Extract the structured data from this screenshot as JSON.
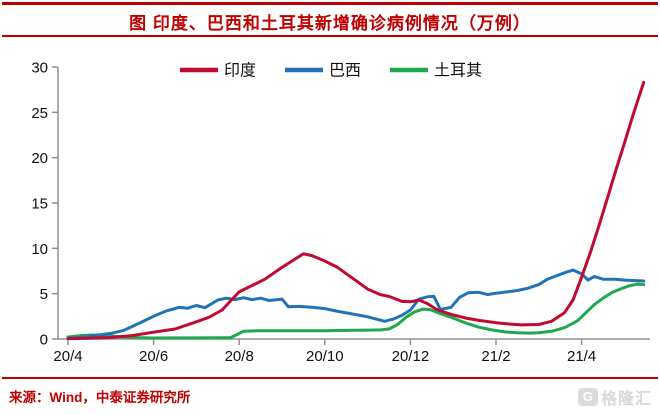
{
  "page": {
    "title": "图 印度、巴西和土耳其新增确诊病例情况（万例）",
    "source_note": "来源：Wind，中泰证券研究所",
    "watermark": {
      "icon": "gelonghui-logo-icon",
      "logo_text": "格隆汇"
    },
    "colors": {
      "accent_red": "#C00000",
      "india_red": "#C00A30",
      "brazil_blue": "#2273B6",
      "turkey_green": "#1FA84D",
      "axis_gray": "#909090",
      "tick_text": "#111111",
      "watermark_gray": "#CBCBCB"
    }
  },
  "chart_data": {
    "type": "line",
    "title": "图 印度、巴西和土耳其新增确诊病例情况（万例）",
    "unit": "万例",
    "grid": false,
    "legend_position": "top-center",
    "x_unit": "months since 2020-04",
    "x_axis": {
      "range_months": [
        0,
        13.45
      ],
      "ticks": [
        {
          "t": 0,
          "label": "20/4"
        },
        {
          "t": 2,
          "label": "20/6"
        },
        {
          "t": 4,
          "label": "20/8"
        },
        {
          "t": 6,
          "label": "20/10"
        },
        {
          "t": 8,
          "label": "20/12"
        },
        {
          "t": 10,
          "label": "21/2"
        },
        {
          "t": 12,
          "label": "21/4"
        }
      ]
    },
    "y_axis": {
      "min": 0,
      "max": 30,
      "tick_step": 5,
      "ticks": [
        0,
        5,
        10,
        15,
        20,
        25,
        30
      ]
    },
    "series": [
      {
        "id": "turkey",
        "name": "土耳其",
        "color": "#1FA84D",
        "points": [
          [
            0,
            0.22
          ],
          [
            0.3,
            0.38
          ],
          [
            0.55,
            0.44
          ],
          [
            0.8,
            0.4
          ],
          [
            1,
            0.32
          ],
          [
            1.3,
            0.22
          ],
          [
            1.6,
            0.15
          ],
          [
            2,
            0.11
          ],
          [
            2.5,
            0.12
          ],
          [
            3,
            0.12
          ],
          [
            3.5,
            0.13
          ],
          [
            3.8,
            0.15
          ],
          [
            3.95,
            0.5
          ],
          [
            4.1,
            0.85
          ],
          [
            4.4,
            0.9
          ],
          [
            5,
            0.92
          ],
          [
            5.5,
            0.9
          ],
          [
            6,
            0.92
          ],
          [
            6.5,
            0.95
          ],
          [
            7,
            0.98
          ],
          [
            7.3,
            1.0
          ],
          [
            7.5,
            1.1
          ],
          [
            7.7,
            1.6
          ],
          [
            7.9,
            2.4
          ],
          [
            8.1,
            3.0
          ],
          [
            8.3,
            3.3
          ],
          [
            8.45,
            3.25
          ],
          [
            8.7,
            2.8
          ],
          [
            9,
            2.3
          ],
          [
            9.3,
            1.75
          ],
          [
            9.6,
            1.3
          ],
          [
            9.9,
            1.0
          ],
          [
            10.2,
            0.78
          ],
          [
            10.5,
            0.68
          ],
          [
            10.8,
            0.65
          ],
          [
            11,
            0.7
          ],
          [
            11.3,
            0.85
          ],
          [
            11.6,
            1.25
          ],
          [
            11.9,
            2.0
          ],
          [
            12.1,
            2.9
          ],
          [
            12.3,
            3.8
          ],
          [
            12.5,
            4.5
          ],
          [
            12.7,
            5.1
          ],
          [
            12.9,
            5.5
          ],
          [
            13.1,
            5.85
          ],
          [
            13.3,
            6.05
          ],
          [
            13.45,
            6.0
          ]
        ]
      },
      {
        "id": "brazil",
        "name": "巴西",
        "color": "#2273B6",
        "points": [
          [
            0,
            0.07
          ],
          [
            0.3,
            0.2
          ],
          [
            0.6,
            0.38
          ],
          [
            1,
            0.62
          ],
          [
            1.3,
            0.95
          ],
          [
            1.6,
            1.6
          ],
          [
            2,
            2.5
          ],
          [
            2.3,
            3.1
          ],
          [
            2.6,
            3.5
          ],
          [
            2.8,
            3.4
          ],
          [
            3,
            3.7
          ],
          [
            3.2,
            3.45
          ],
          [
            3.5,
            4.3
          ],
          [
            3.7,
            4.5
          ],
          [
            3.9,
            4.35
          ],
          [
            4.1,
            4.55
          ],
          [
            4.3,
            4.35
          ],
          [
            4.5,
            4.5
          ],
          [
            4.7,
            4.25
          ],
          [
            5,
            4.4
          ],
          [
            5.15,
            3.55
          ],
          [
            5.4,
            3.6
          ],
          [
            5.7,
            3.5
          ],
          [
            6,
            3.35
          ],
          [
            6.3,
            3.05
          ],
          [
            6.6,
            2.8
          ],
          [
            7,
            2.45
          ],
          [
            7.2,
            2.2
          ],
          [
            7.4,
            1.95
          ],
          [
            7.6,
            2.2
          ],
          [
            7.8,
            2.6
          ],
          [
            8,
            3.2
          ],
          [
            8.2,
            4.4
          ],
          [
            8.4,
            4.65
          ],
          [
            8.55,
            4.7
          ],
          [
            8.7,
            3.25
          ],
          [
            8.95,
            3.5
          ],
          [
            9.15,
            4.6
          ],
          [
            9.35,
            5.1
          ],
          [
            9.6,
            5.15
          ],
          [
            9.8,
            4.9
          ],
          [
            10,
            5.05
          ],
          [
            10.25,
            5.2
          ],
          [
            10.5,
            5.35
          ],
          [
            10.75,
            5.6
          ],
          [
            11,
            6.0
          ],
          [
            11.2,
            6.6
          ],
          [
            11.4,
            6.95
          ],
          [
            11.6,
            7.3
          ],
          [
            11.8,
            7.6
          ],
          [
            12,
            7.2
          ],
          [
            12.15,
            6.5
          ],
          [
            12.3,
            6.9
          ],
          [
            12.5,
            6.6
          ],
          [
            12.8,
            6.6
          ],
          [
            13,
            6.5
          ],
          [
            13.45,
            6.4
          ]
        ]
      },
      {
        "id": "india",
        "name": "印度",
        "color": "#C00A30",
        "points": [
          [
            0,
            0.04
          ],
          [
            0.5,
            0.09
          ],
          [
            1,
            0.17
          ],
          [
            1.5,
            0.38
          ],
          [
            2,
            0.75
          ],
          [
            2.5,
            1.1
          ],
          [
            3,
            1.9
          ],
          [
            3.3,
            2.4
          ],
          [
            3.6,
            3.2
          ],
          [
            3.8,
            4.2
          ],
          [
            4,
            5.2
          ],
          [
            4.3,
            5.9
          ],
          [
            4.6,
            6.6
          ],
          [
            5,
            7.9
          ],
          [
            5.2,
            8.5
          ],
          [
            5.5,
            9.4
          ],
          [
            5.7,
            9.2
          ],
          [
            6,
            8.6
          ],
          [
            6.3,
            7.9
          ],
          [
            6.5,
            7.2
          ],
          [
            6.8,
            6.2
          ],
          [
            7,
            5.5
          ],
          [
            7.3,
            4.9
          ],
          [
            7.5,
            4.7
          ],
          [
            7.8,
            4.15
          ],
          [
            8,
            4.1
          ],
          [
            8.2,
            4.3
          ],
          [
            8.4,
            3.9
          ],
          [
            8.6,
            3.3
          ],
          [
            8.8,
            2.95
          ],
          [
            9,
            2.65
          ],
          [
            9.3,
            2.3
          ],
          [
            9.6,
            2.05
          ],
          [
            10,
            1.8
          ],
          [
            10.3,
            1.65
          ],
          [
            10.6,
            1.55
          ],
          [
            11,
            1.6
          ],
          [
            11.3,
            1.95
          ],
          [
            11.6,
            2.9
          ],
          [
            11.8,
            4.3
          ],
          [
            12,
            6.8
          ],
          [
            12.2,
            9.5
          ],
          [
            12.4,
            12.4
          ],
          [
            12.6,
            15.5
          ],
          [
            12.8,
            18.6
          ],
          [
            13,
            21.6
          ],
          [
            13.2,
            24.7
          ],
          [
            13.45,
            28.3
          ]
        ]
      }
    ]
  }
}
